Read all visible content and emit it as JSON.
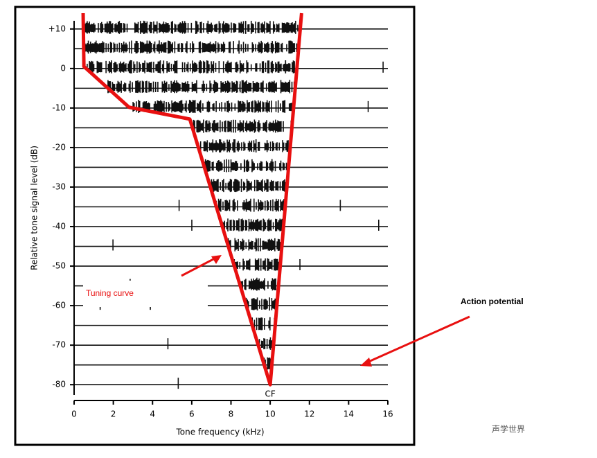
{
  "chart_data": {
    "type": "line",
    "xlabel": "Tone frequency (kHz)",
    "ylabel": "Relative tone signal level (dB)",
    "xlim": [
      0,
      16
    ],
    "xticks": [
      0,
      2,
      4,
      6,
      8,
      10,
      12,
      14,
      16
    ],
    "ylim": [
      -84,
      14
    ],
    "yticks": [
      {
        "value": 10,
        "label": "+10"
      },
      0,
      -10,
      -20,
      -30,
      -40,
      -50,
      -60,
      -70,
      -80
    ],
    "series": [
      {
        "color": "#e81010",
        "x": [
          0.46,
          0.5,
          2.8,
          5.9,
          10.0,
          11.6
        ],
        "values": [
          14,
          0.5,
          -9.8,
          -12.8,
          -80,
          14
        ]
      }
    ],
    "annotations": {
      "tuning_curve": "Tuning curve",
      "action_potential": "Action potential",
      "cf": "CF",
      "watermark": "声学世界"
    }
  }
}
